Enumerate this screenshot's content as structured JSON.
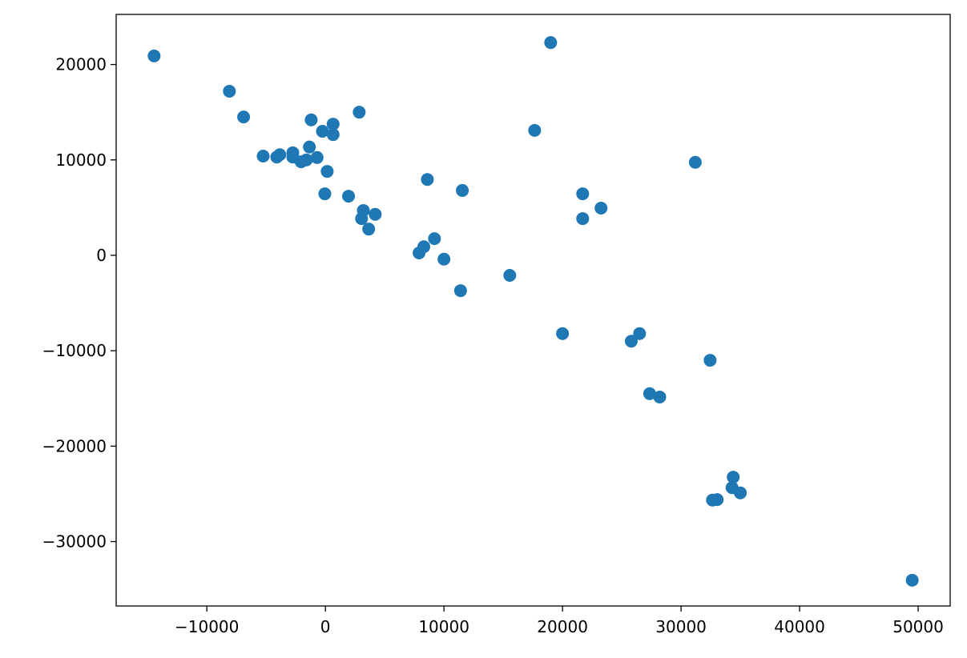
{
  "chart_data": {
    "type": "scatter",
    "color": "#1f77b4",
    "x": [
      -14450,
      -8100,
      -6900,
      -5250,
      -4100,
      -3850,
      -2750,
      -2750,
      -2050,
      -1600,
      -1350,
      -1200,
      -700,
      -250,
      -50,
      150,
      650,
      650,
      1950,
      2850,
      3200,
      3050,
      3650,
      4200,
      7900,
      8300,
      8600,
      9200,
      10000,
      11400,
      11550,
      15550,
      17650,
      19000,
      20000,
      21700,
      21700,
      23250,
      25800,
      26500,
      27350,
      28200,
      31200,
      32450,
      34400,
      34300,
      35000,
      32650,
      33050,
      49500
    ],
    "values": [
      20900,
      17200,
      14500,
      10400,
      10300,
      10550,
      10750,
      10300,
      9800,
      10000,
      11350,
      14200,
      10250,
      13000,
      6450,
      8800,
      13750,
      12650,
      6200,
      15000,
      4700,
      3850,
      2750,
      4300,
      250,
      900,
      7950,
      1750,
      -400,
      -3700,
      6800,
      -2100,
      13100,
      22300,
      -8200,
      6450,
      3850,
      4950,
      -9000,
      -8200,
      -14500,
      -14850,
      9750,
      -11000,
      -23250,
      -24350,
      -24900,
      -25650,
      -25600,
      -34050
    ],
    "xlim": [
      -17650,
      52700
    ],
    "ylim": [
      -36750,
      25250
    ],
    "xticks": [
      {
        "value": -10000,
        "label": "−10000"
      },
      0,
      10000,
      20000,
      30000,
      40000,
      50000
    ],
    "yticks": [
      {
        "value": -30000,
        "label": "−30000"
      },
      {
        "value": -20000,
        "label": "−20000"
      },
      {
        "value": -10000,
        "label": "−10000"
      },
      0,
      10000,
      20000
    ]
  }
}
